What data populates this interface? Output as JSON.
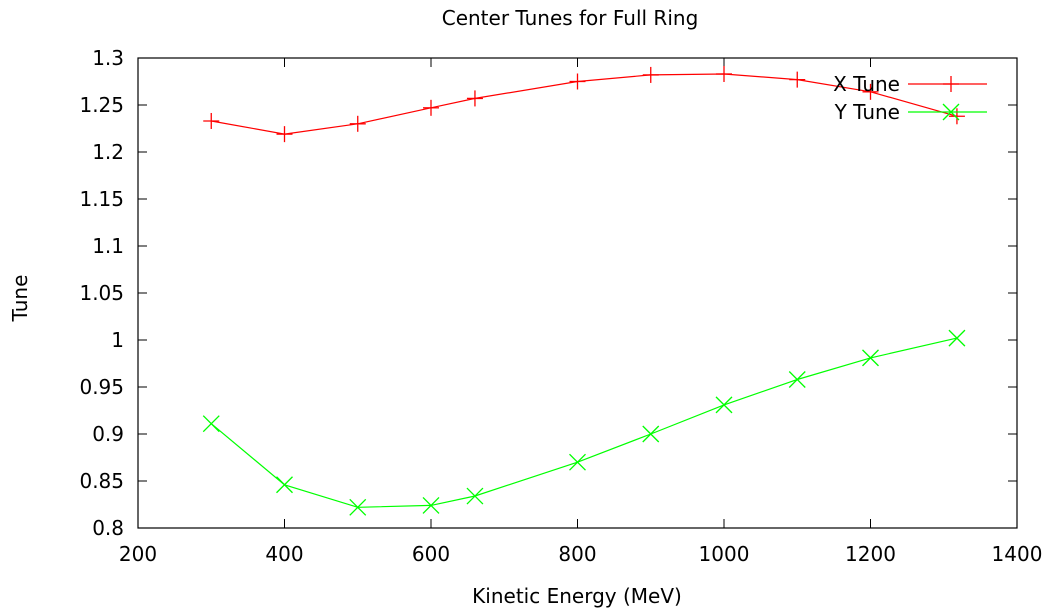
{
  "chart_data": {
    "type": "line",
    "title": "Center Tunes for Full Ring",
    "xlabel": "Kinetic Energy (MeV)",
    "ylabel": "Tune",
    "xlim": [
      200,
      1400
    ],
    "ylim": [
      0.8,
      1.3
    ],
    "xticks": [
      200,
      400,
      600,
      800,
      1000,
      1200,
      1400
    ],
    "xtick_labels": [
      "200",
      "400",
      "600",
      "800",
      "1000",
      "1200",
      "1400"
    ],
    "yticks": [
      0.8,
      0.85,
      0.9,
      0.95,
      1.0,
      1.05,
      1.1,
      1.15,
      1.2,
      1.25,
      1.3
    ],
    "ytick_labels": [
      "0.8",
      "0.85",
      "0.9",
      "0.95",
      "1",
      "1.05",
      "1.1",
      "1.15",
      "1.2",
      "1.25",
      "1.3"
    ],
    "grid": false,
    "legend_position": "top-right",
    "series": [
      {
        "name": "X Tune",
        "color": "#ff0000",
        "marker": "plus",
        "x": [
          300,
          400,
          500,
          600,
          660,
          800,
          900,
          1000,
          1100,
          1200,
          1318
        ],
        "y": [
          1.233,
          1.219,
          1.23,
          1.247,
          1.257,
          1.275,
          1.282,
          1.283,
          1.277,
          1.264,
          1.238
        ]
      },
      {
        "name": "Y Tune",
        "color": "#00ff00",
        "marker": "cross",
        "x": [
          300,
          400,
          500,
          600,
          660,
          800,
          900,
          1000,
          1100,
          1200,
          1318
        ],
        "y": [
          0.911,
          0.846,
          0.822,
          0.824,
          0.834,
          0.87,
          0.9,
          0.931,
          0.958,
          0.981,
          1.002
        ]
      }
    ]
  }
}
